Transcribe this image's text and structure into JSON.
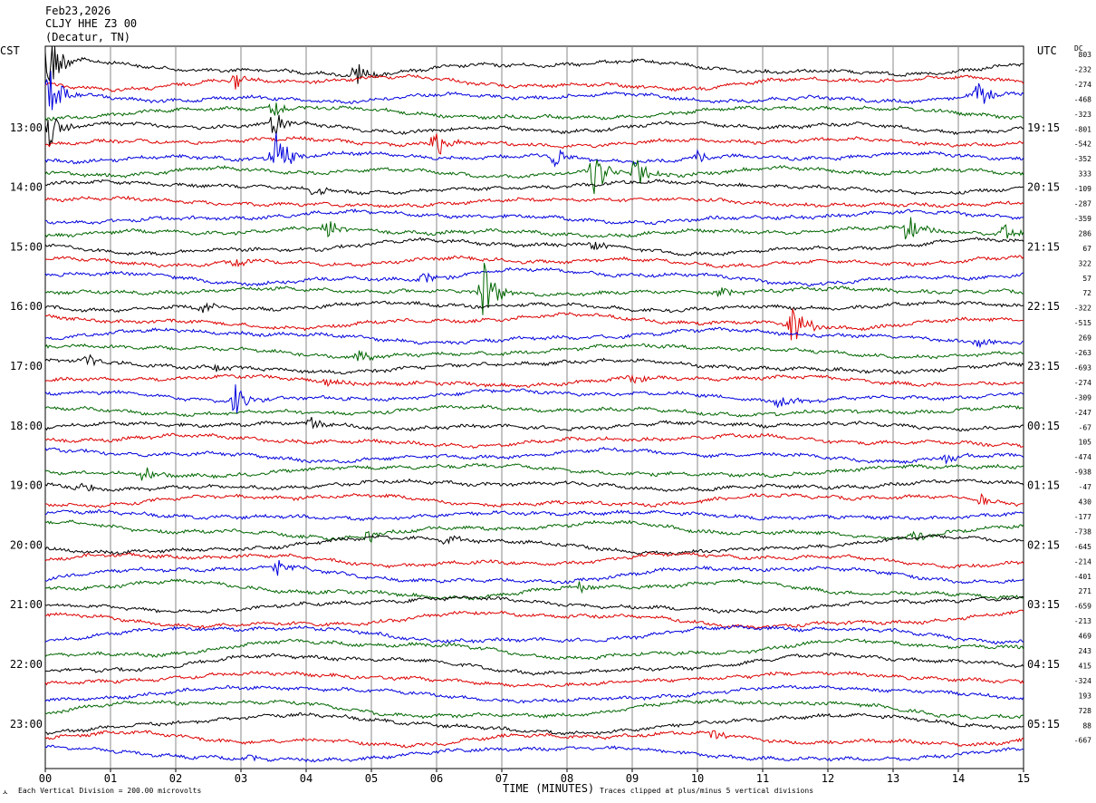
{
  "header": {
    "date": "Feb23,2026",
    "station": "CLJY HHE Z3 00",
    "location": "(Decatur, TN)"
  },
  "left_zone": "CST",
  "right_zone": "UTC",
  "dc_label": "DC",
  "footer": {
    "scale": "Each Vertical Division =  200.00 microvolts",
    "xlabel": "TIME (MINUTES)",
    "clip": "Traces clipped at plus/minus 5 vertical divisions",
    "mark": "ㅅ"
  },
  "colors": {
    "trace_cycle": [
      "#000000",
      "#dd0000",
      "#0000dd",
      "#006600"
    ],
    "grid": "#888888"
  },
  "chart_data": {
    "type": "line",
    "x_ticks": [
      "00",
      "01",
      "02",
      "03",
      "04",
      "05",
      "06",
      "07",
      "08",
      "09",
      "10",
      "11",
      "12",
      "13",
      "14",
      "15"
    ],
    "xlim": [
      0,
      15
    ],
    "left_time_labels": [
      "13:00",
      "14:00",
      "15:00",
      "16:00",
      "17:00",
      "18:00",
      "19:00",
      "20:00",
      "21:00",
      "22:00",
      "23:00"
    ],
    "right_time_labels": [
      "19:15",
      "20:15",
      "21:15",
      "22:15",
      "23:15",
      "00:15",
      "01:15",
      "02:15",
      "03:15",
      "04:15",
      "05:15"
    ],
    "dc_offsets": [
      803,
      -232,
      -274,
      -468,
      -323,
      -801,
      -542,
      -352,
      333,
      -109,
      -287,
      -359,
      286,
      67,
      322,
      57,
      72,
      -322,
      -515,
      269,
      -263,
      -693,
      -274,
      -309,
      -247,
      -67,
      105,
      -474,
      -938,
      -47,
      430,
      -177,
      -738,
      -645,
      -214,
      -401,
      271,
      -659,
      -213,
      469,
      243,
      415,
      -324,
      193,
      728,
      88,
      -667
    ],
    "events": [
      {
        "trace": 0,
        "minute": 0.05,
        "amp": 5
      },
      {
        "trace": 2,
        "minute": 0.05,
        "amp": 4
      },
      {
        "trace": 4,
        "minute": 0.05,
        "amp": 3
      },
      {
        "trace": 0,
        "minute": 4.75,
        "amp": 2
      },
      {
        "trace": 1,
        "minute": 2.9,
        "amp": 1.2
      },
      {
        "trace": 2,
        "minute": 14.3,
        "amp": 2
      },
      {
        "trace": 3,
        "minute": 3.5,
        "amp": 1.5
      },
      {
        "trace": 4,
        "minute": 3.5,
        "amp": 2
      },
      {
        "trace": 5,
        "minute": 5.95,
        "amp": 2.5
      },
      {
        "trace": 6,
        "minute": 3.5,
        "amp": 5
      },
      {
        "trace": 6,
        "minute": 7.8,
        "amp": 1.5
      },
      {
        "trace": 6,
        "minute": 10.0,
        "amp": 1
      },
      {
        "trace": 7,
        "minute": 8.4,
        "amp": 4
      },
      {
        "trace": 7,
        "minute": 9.05,
        "amp": 2.5
      },
      {
        "trace": 8,
        "minute": 4.1,
        "amp": 1.2
      },
      {
        "trace": 11,
        "minute": 4.3,
        "amp": 2
      },
      {
        "trace": 11,
        "minute": 13.2,
        "amp": 2.5
      },
      {
        "trace": 11,
        "minute": 14.7,
        "amp": 1.2
      },
      {
        "trace": 12,
        "minute": 8.4,
        "amp": 1
      },
      {
        "trace": 13,
        "minute": 2.9,
        "amp": 1
      },
      {
        "trace": 14,
        "minute": 5.8,
        "amp": 1.2
      },
      {
        "trace": 15,
        "minute": 6.7,
        "amp": 5
      },
      {
        "trace": 15,
        "minute": 10.3,
        "amp": 1.2
      },
      {
        "trace": 16,
        "minute": 2.4,
        "amp": 1
      },
      {
        "trace": 17,
        "minute": 11.45,
        "amp": 3.5
      },
      {
        "trace": 18,
        "minute": 14.3,
        "amp": 1
      },
      {
        "trace": 19,
        "minute": 4.8,
        "amp": 1
      },
      {
        "trace": 20,
        "minute": 0.65,
        "amp": 1
      },
      {
        "trace": 20,
        "minute": 2.6,
        "amp": 1
      },
      {
        "trace": 21,
        "minute": 4.3,
        "amp": 1
      },
      {
        "trace": 21,
        "minute": 8.95,
        "amp": 1
      },
      {
        "trace": 22,
        "minute": 2.9,
        "amp": 2.5
      },
      {
        "trace": 22,
        "minute": 11.25,
        "amp": 1.2
      },
      {
        "trace": 24,
        "minute": 4.05,
        "amp": 1
      },
      {
        "trace": 26,
        "minute": 13.8,
        "amp": 1
      },
      {
        "trace": 27,
        "minute": 1.5,
        "amp": 1.2
      },
      {
        "trace": 28,
        "minute": 0.5,
        "amp": 1
      },
      {
        "trace": 29,
        "minute": 14.35,
        "amp": 1.2
      },
      {
        "trace": 31,
        "minute": 4.95,
        "amp": 1
      },
      {
        "trace": 31,
        "minute": 13.3,
        "amp": 1
      },
      {
        "trace": 32,
        "minute": 6.15,
        "amp": 1
      },
      {
        "trace": 34,
        "minute": 3.55,
        "amp": 1.2
      },
      {
        "trace": 35,
        "minute": 8.2,
        "amp": 0.8
      },
      {
        "trace": 45,
        "minute": 10.2,
        "amp": 0.8
      },
      {
        "trace": 46,
        "minute": 3.1,
        "amp": 0.8
      }
    ]
  }
}
